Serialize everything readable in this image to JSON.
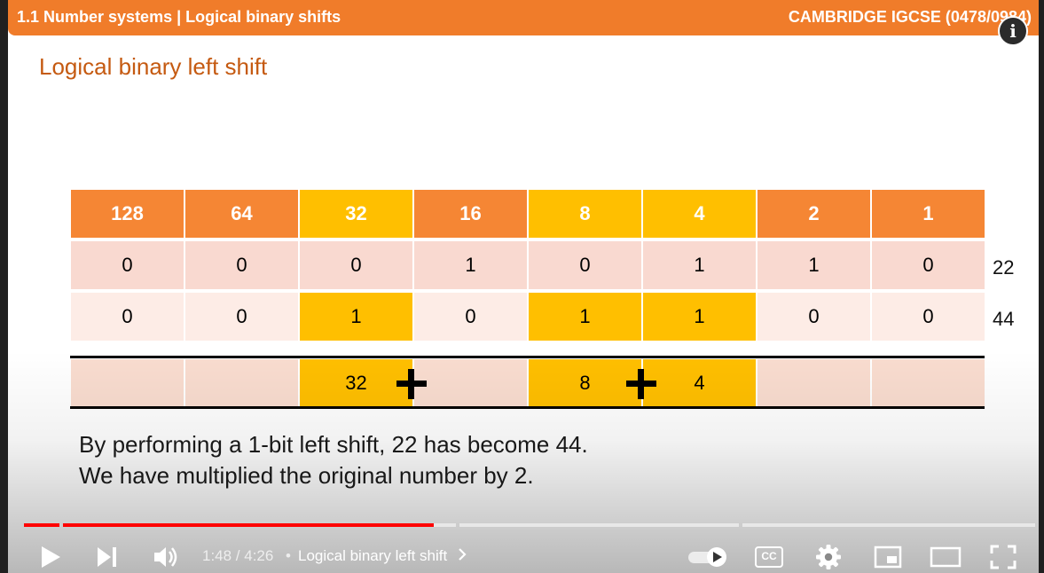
{
  "header": {
    "left_title": "1.1 Number systems | Logical binary shifts",
    "right_title": "CAMBRIDGE IGCSE (0478/0984)"
  },
  "info_button": "i",
  "slide_title": "Logical binary left shift",
  "place_values": [
    "128",
    "64",
    "32",
    "16",
    "8",
    "4",
    "2",
    "1"
  ],
  "row1": {
    "bits": [
      "0",
      "0",
      "0",
      "1",
      "0",
      "1",
      "1",
      "0"
    ],
    "decimal": "22"
  },
  "row2": {
    "bits": [
      "0",
      "0",
      "1",
      "0",
      "1",
      "1",
      "0",
      "0"
    ],
    "decimal": "44"
  },
  "sum_row": {
    "a": "32",
    "b": "8",
    "c": "4"
  },
  "caption": {
    "line1": "By performing a 1-bit left shift, 22 has become 44.",
    "line2": "We have multiplied the original number by 2."
  },
  "player": {
    "time": "1:48 / 4:26",
    "separator": "•",
    "chapter": "Logical binary left shift",
    "progress_fraction": 0.405,
    "cc_label": "CC"
  },
  "colors": {
    "accent_orange": "#f58634",
    "highlight_yellow": "#ffbf00",
    "title_orange": "#c55a11",
    "progress_red": "#ff0000"
  }
}
